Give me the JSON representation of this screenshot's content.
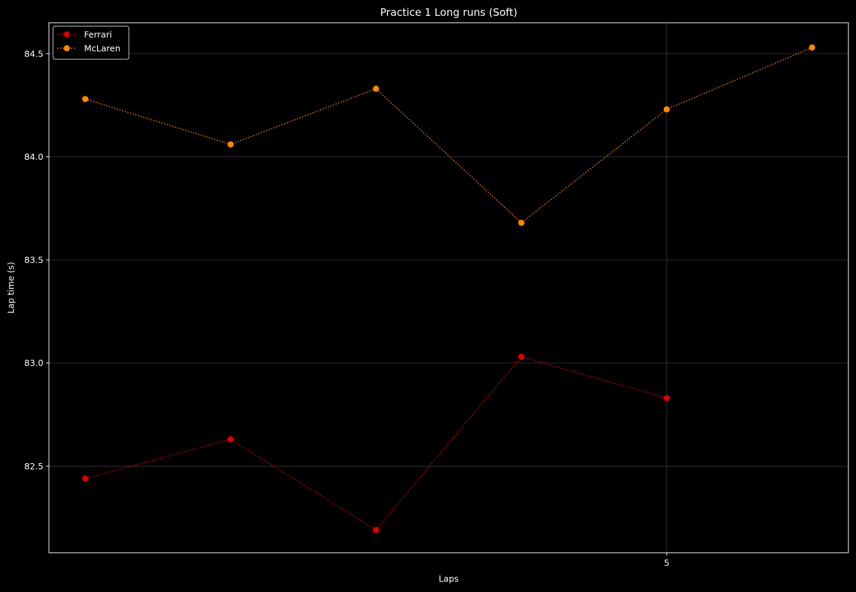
{
  "chart_data": {
    "type": "line",
    "title": "Practice 1 Long runs (Soft)",
    "xlabel": "Laps",
    "ylabel": "Lap time (s)",
    "x": [
      1,
      2,
      3,
      4,
      5,
      6
    ],
    "xlim": [
      0.75,
      6.25
    ],
    "ylim": [
      82.08,
      84.65
    ],
    "xticks": [
      5
    ],
    "xtick_labels": [
      "5"
    ],
    "yticks": [
      82.5,
      83.0,
      83.5,
      84.0,
      84.5
    ],
    "ytick_labels": [
      "82.5",
      "83.0",
      "83.5",
      "84.0",
      "84.5"
    ],
    "grid": true,
    "legend_position": "top-left",
    "series": [
      {
        "name": "Ferrari",
        "color": "#dc0000",
        "x": [
          1,
          2,
          3,
          4,
          5
        ],
        "values": [
          82.44,
          82.63,
          82.19,
          83.03,
          82.83
        ]
      },
      {
        "name": "McLaren",
        "color": "#ff8700",
        "x": [
          1,
          2,
          3,
          4,
          5,
          6
        ],
        "values": [
          84.28,
          84.06,
          84.33,
          83.68,
          84.23,
          84.53
        ]
      }
    ]
  }
}
